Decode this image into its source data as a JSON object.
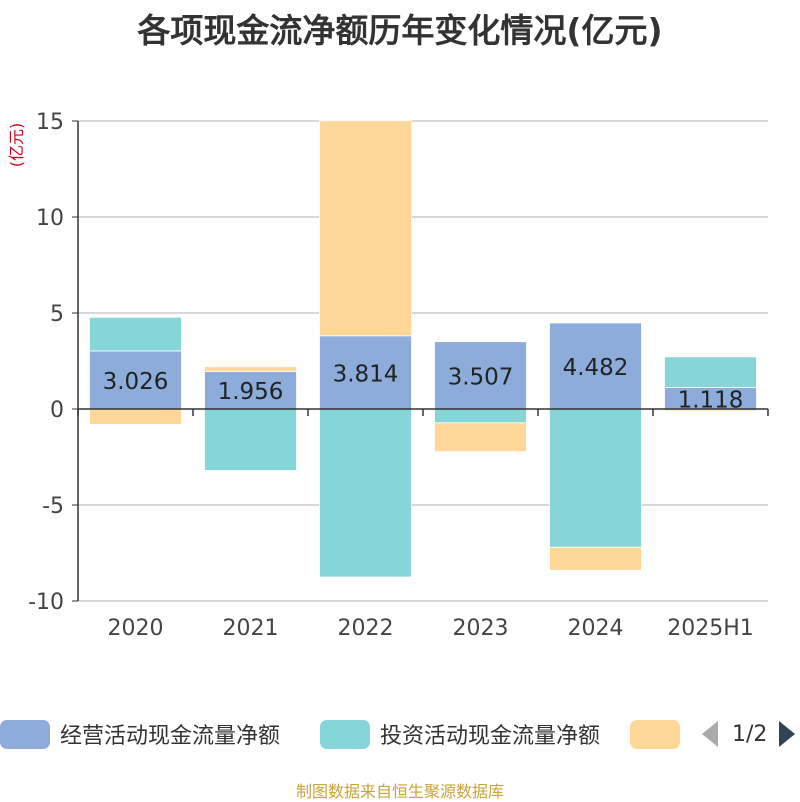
{
  "title": "各项现金流净额历年变化情况(亿元)",
  "source_note": "制图数据来自恒生聚源数据库",
  "legend": {
    "items": [
      {
        "label": "经营活动现金流量净额",
        "color": "#8eacdb"
      },
      {
        "label": "投资活动现金流量净额",
        "color": "#86d5d8"
      },
      {
        "label": "",
        "color": "#ffd899"
      }
    ],
    "page_indicator": "1/2",
    "prev_icon": "triangle-left-icon",
    "next_icon": "triangle-right-icon"
  },
  "chart_data": {
    "type": "bar",
    "stacked": true,
    "ylabel": "(亿元)",
    "ylim": [
      -10,
      15
    ],
    "yticks": [
      15,
      10,
      5,
      0,
      -5,
      -10
    ],
    "grid": true,
    "categories": [
      "2020",
      "2021",
      "2022",
      "2023",
      "2024",
      "2025H1"
    ],
    "series": [
      {
        "name": "经营活动现金流量净额",
        "color": "#8eacdb",
        "values": [
          3.026,
          1.956,
          3.814,
          3.507,
          4.482,
          1.118
        ],
        "labels": [
          "3.026",
          "1.956",
          "3.814",
          "3.507",
          "4.482",
          "1.118"
        ]
      },
      {
        "name": "投资活动现金流量净额",
        "color": "#86d5d8",
        "values": [
          1.75,
          -3.2,
          -8.75,
          -0.72,
          -7.2,
          1.6
        ]
      },
      {
        "name": "",
        "color": "#ffd899",
        "values": [
          -0.8,
          0.25,
          11.2,
          -1.5,
          -1.2,
          -0.1
        ]
      }
    ]
  }
}
